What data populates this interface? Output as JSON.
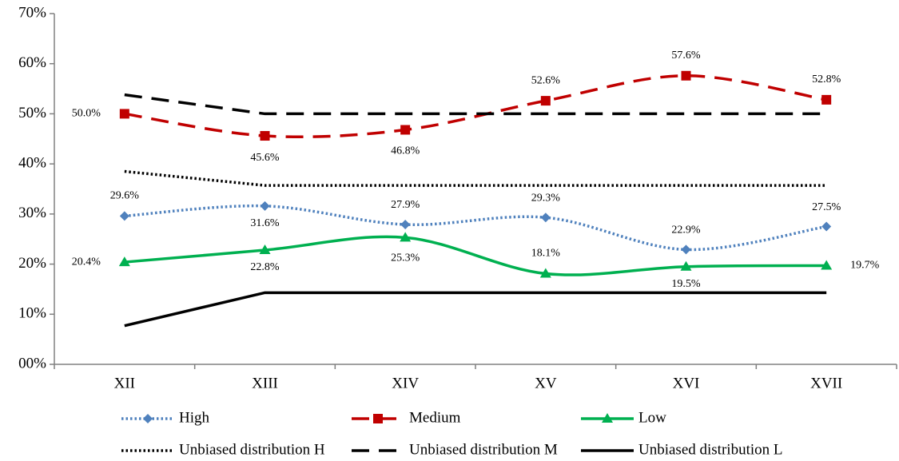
{
  "chart_data": {
    "type": "line",
    "categories": [
      "XII",
      "XIII",
      "XIV",
      "XV",
      "XVI",
      "XVII"
    ],
    "ylim": [
      0,
      70
    ],
    "yticks": [
      {
        "value": 0,
        "label": "00%"
      },
      {
        "value": 10,
        "label": "10%"
      },
      {
        "value": 20,
        "label": "20%"
      },
      {
        "value": 30,
        "label": "30%"
      },
      {
        "value": 40,
        "label": "40%"
      },
      {
        "value": 50,
        "label": "50%"
      },
      {
        "value": 60,
        "label": "60%"
      },
      {
        "value": 70,
        "label": "70%"
      }
    ],
    "grid": false,
    "series": [
      {
        "name": "High",
        "color": "#4f81bd",
        "line_style": "dotted",
        "marker": "diamond",
        "smooth": true,
        "values": [
          29.6,
          31.6,
          27.9,
          29.3,
          22.9,
          27.5
        ],
        "value_labels": [
          "29.6%",
          "31.6%",
          "27.9%",
          "29.3%",
          "22.9%",
          "27.5%"
        ]
      },
      {
        "name": "Medium",
        "color": "#c00000",
        "line_style": "dashed",
        "marker": "square",
        "smooth": true,
        "values": [
          50.0,
          45.6,
          46.8,
          52.6,
          57.6,
          52.8
        ],
        "value_labels": [
          "50.0%",
          "45.6%",
          "46.8%",
          "52.6%",
          "57.6%",
          "52.8%"
        ]
      },
      {
        "name": "Low",
        "color": "#00b050",
        "line_style": "solid",
        "marker": "triangle",
        "smooth": true,
        "values": [
          20.4,
          22.8,
          25.3,
          18.1,
          19.5,
          19.7
        ],
        "value_labels": [
          "20.4%",
          "22.8%",
          "25.3%",
          "18.1%",
          "19.5%",
          "19.7%"
        ]
      },
      {
        "name": "Unbiased distribution H",
        "color": "#000000",
        "line_style": "dotted",
        "smooth": false,
        "values": [
          38.5,
          35.7,
          35.7,
          35.7,
          35.7,
          35.7
        ]
      },
      {
        "name": "Unbiased distribution M",
        "color": "#000000",
        "line_style": "dashed",
        "smooth": false,
        "values": [
          53.8,
          50.0,
          50.0,
          50.0,
          50.0,
          50.0
        ]
      },
      {
        "name": "Unbiased distribution L",
        "color": "#000000",
        "line_style": "solid",
        "smooth": false,
        "values": [
          7.7,
          14.3,
          14.3,
          14.3,
          14.3,
          14.3
        ]
      }
    ]
  }
}
